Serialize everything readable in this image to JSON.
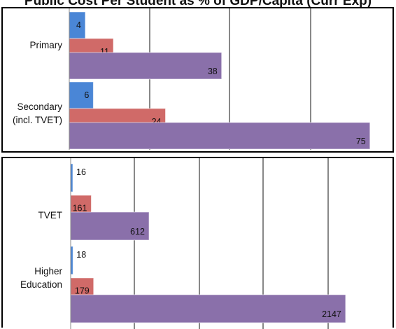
{
  "page": {
    "title": "Public Cost Per Student as % of GDP/Capita (Curr Exp)"
  },
  "chart_data": [
    {
      "type": "bar",
      "orientation": "horizontal",
      "categories": [
        "Primary",
        "Secondary\n(incl. TVET)"
      ],
      "category_labels": [
        [
          "Primary"
        ],
        [
          "Secondary",
          "(incl. TVET)"
        ]
      ],
      "series": [
        {
          "values": [
            4,
            6
          ],
          "color": "#4a86d6"
        },
        {
          "values": [
            11,
            24
          ],
          "color": "#d06a68"
        },
        {
          "values": [
            38,
            75
          ],
          "color": "#8a70aa"
        }
      ],
      "xlim": [
        0,
        80
      ],
      "grid": true
    },
    {
      "type": "bar",
      "orientation": "horizontal",
      "categories": [
        "TVET",
        "Higher\nEducation"
      ],
      "category_labels": [
        [
          "TVET"
        ],
        [
          "Higher",
          "Education"
        ]
      ],
      "series": [
        {
          "values": [
            16,
            18
          ],
          "color": "#4a86d6"
        },
        {
          "values": [
            161,
            179
          ],
          "color": "#d06a68"
        },
        {
          "values": [
            612,
            2147
          ],
          "color": "#8a70aa"
        }
      ],
      "xlim": [
        0,
        2500
      ],
      "grid": true
    }
  ]
}
